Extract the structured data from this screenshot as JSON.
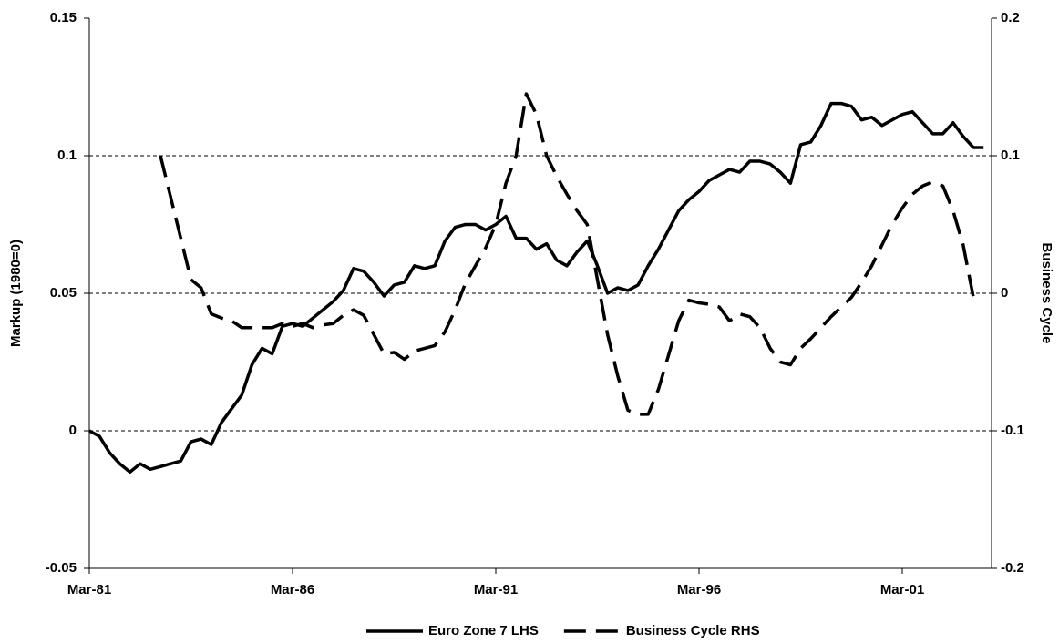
{
  "chart_data": {
    "type": "line",
    "categories": [
      "Mar-81",
      null,
      null,
      null,
      null,
      null,
      null,
      null,
      null,
      null,
      null,
      null,
      null,
      null,
      null,
      null,
      null,
      null,
      null,
      null,
      "Mar-86",
      null,
      null,
      null,
      null,
      null,
      null,
      null,
      null,
      null,
      null,
      null,
      null,
      null,
      null,
      null,
      null,
      null,
      null,
      null,
      "Mar-91",
      null,
      null,
      null,
      null,
      null,
      null,
      null,
      null,
      null,
      null,
      null,
      null,
      null,
      null,
      null,
      null,
      null,
      null,
      null,
      "Mar-96",
      null,
      null,
      null,
      null,
      null,
      null,
      null,
      null,
      null,
      null,
      null,
      null,
      null,
      null,
      null,
      null,
      null,
      null,
      null,
      "Mar-01",
      null,
      null,
      null,
      null,
      null,
      null,
      null,
      null
    ],
    "y_label": "Markup (1980=0)",
    "y2_label": "Business Cycle",
    "ylim": [
      -0.05,
      0.15
    ],
    "yticks": [
      -0.05,
      0,
      0.05,
      0.1,
      0.15
    ],
    "y2lim": [
      -0.2,
      0.2
    ],
    "y2ticks": [
      -0.2,
      -0.1,
      0,
      0.1,
      0.2
    ],
    "grid": true,
    "legend": "bottom",
    "series": [
      {
        "name": "Euro Zone 7 LHS",
        "color": "#000000",
        "line_style": "solid",
        "values": [
          0.0,
          -0.002,
          -0.008,
          -0.012,
          -0.015,
          -0.012,
          -0.014,
          -0.013,
          -0.012,
          -0.011,
          -0.004,
          -0.003,
          -0.005,
          0.003,
          0.008,
          0.013,
          0.024,
          0.03,
          0.028,
          0.038,
          0.039,
          0.038,
          0.041,
          0.044,
          0.047,
          0.051,
          0.059,
          0.058,
          0.054,
          0.049,
          0.053,
          0.054,
          0.06,
          0.059,
          0.06,
          0.069,
          0.074,
          0.075,
          0.075,
          0.073,
          0.075,
          0.078,
          0.07,
          0.07,
          0.066,
          0.068,
          0.062,
          0.06,
          0.065,
          0.069,
          0.06,
          0.05,
          0.052,
          0.051,
          0.053,
          0.06,
          0.066,
          0.073,
          0.08,
          0.084,
          0.087,
          0.091,
          0.093,
          0.095,
          0.094,
          0.098,
          0.098,
          0.097,
          0.094,
          0.09,
          0.104,
          0.105,
          0.111,
          0.119,
          0.119,
          0.118,
          0.113,
          0.114,
          0.111,
          0.113,
          0.115,
          0.116,
          0.112,
          0.108,
          0.108,
          0.112,
          0.107,
          0.103,
          0.103
        ]
      },
      {
        "name": "Business Cycle RHS",
        "color": "#000000",
        "line_style": "dashed",
        "axis": "y2",
        "values": [
          null,
          null,
          null,
          null,
          null,
          null,
          null,
          0.1,
          0.07,
          0.04,
          0.01,
          0.004,
          -0.015,
          -0.018,
          -0.02,
          -0.025,
          -0.025,
          -0.025,
          -0.025,
          -0.022,
          -0.024,
          -0.022,
          -0.025,
          -0.023,
          -0.022,
          -0.016,
          -0.012,
          -0.016,
          -0.03,
          -0.044,
          -0.043,
          -0.048,
          -0.042,
          -0.04,
          -0.038,
          -0.028,
          -0.012,
          0.007,
          0.02,
          0.033,
          0.05,
          0.08,
          0.1,
          0.145,
          0.13,
          0.1,
          0.085,
          0.072,
          0.06,
          0.05,
          0.01,
          -0.03,
          -0.06,
          -0.085,
          -0.088,
          -0.088,
          -0.07,
          -0.045,
          -0.02,
          -0.005,
          -0.007,
          -0.008,
          -0.01,
          -0.02,
          -0.015,
          -0.017,
          -0.025,
          -0.04,
          -0.05,
          -0.052,
          -0.04,
          -0.033,
          -0.025,
          -0.017,
          -0.01,
          -0.003,
          0.008,
          0.02,
          0.035,
          0.05,
          0.062,
          0.072,
          0.078,
          0.081,
          0.078,
          0.06,
          0.035,
          -0.003,
          null
        ]
      }
    ]
  }
}
